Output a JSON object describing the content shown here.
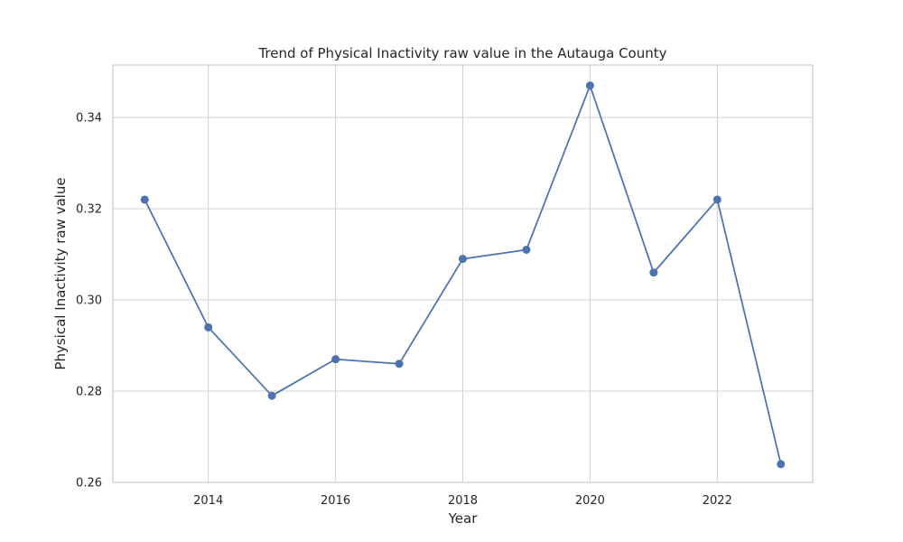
{
  "chart_data": {
    "type": "line",
    "title": "Trend of Physical Inactivity raw value in the Autauga County",
    "xlabel": "Year",
    "ylabel": "Physical Inactivity raw value",
    "x": [
      2013,
      2014,
      2015,
      2016,
      2017,
      2018,
      2019,
      2020,
      2021,
      2022,
      2023
    ],
    "series": [
      {
        "values": [
          0.322,
          0.294,
          0.279,
          0.287,
          0.286,
          0.309,
          0.311,
          0.347,
          0.306,
          0.322,
          0.264
        ],
        "color": "#4c72b0",
        "marker": "circle"
      }
    ],
    "xlim": [
      2012.5,
      2023.5
    ],
    "ylim": [
      0.26,
      0.3515
    ],
    "xticks": [
      2014,
      2016,
      2018,
      2020,
      2022
    ],
    "yticks": [
      0.26,
      0.28,
      0.3,
      0.32,
      0.34
    ],
    "xtick_labels": [
      "2014",
      "2016",
      "2018",
      "2020",
      "2022"
    ],
    "ytick_labels": [
      "0.26",
      "0.28",
      "0.30",
      "0.32",
      "0.34"
    ],
    "grid": true,
    "legend": false
  }
}
